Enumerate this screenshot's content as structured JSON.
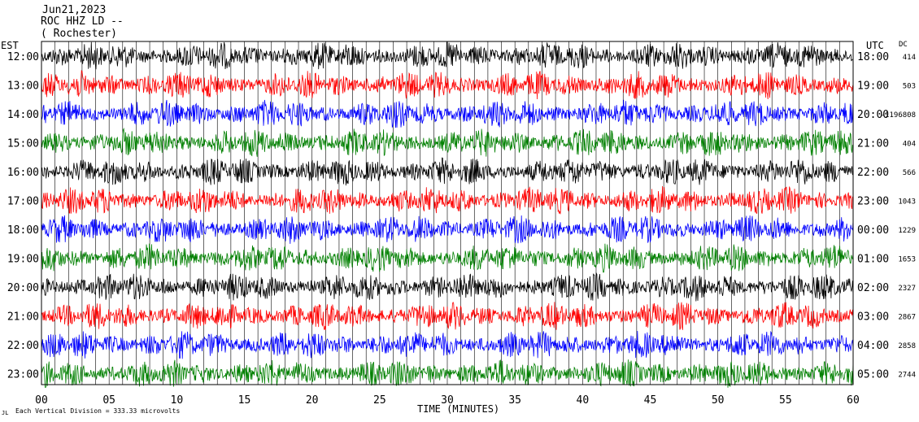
{
  "header": {
    "date": "Jun21,2023",
    "station": "ROC HHZ LD --",
    "location": "( Rochester)"
  },
  "chart_data": {
    "type": "line",
    "title": "Jun21,2023",
    "xlabel": "TIME (MINUTES)",
    "left_axis_label": "EST",
    "right_axis_label": "UTC",
    "dc_label": "DC",
    "x_ticks": [
      "00",
      "05",
      "10",
      "15",
      "20",
      "25",
      "30",
      "35",
      "40",
      "45",
      "50",
      "55",
      "60"
    ],
    "x_tick_values": [
      0,
      5,
      10,
      15,
      20,
      25,
      30,
      35,
      40,
      45,
      50,
      55,
      60
    ],
    "xlim": [
      0,
      60
    ],
    "grid": "vertical lines every minute",
    "trace_colors": [
      "#000000",
      "#ff0000",
      "#008000",
      "#0000ff"
    ],
    "rows": [
      {
        "est": "12:00",
        "utc": "18:00",
        "dc": "414",
        "color": "#000000"
      },
      {
        "est": "13:00",
        "utc": "19:00",
        "dc": "503",
        "color": "#ff0000"
      },
      {
        "est": "14:00",
        "utc": "20:00",
        "dc": "-1196808",
        "color": "#0000ff"
      },
      {
        "est": "15:00",
        "utc": "21:00",
        "dc": "404",
        "color": "#008000"
      },
      {
        "est": "16:00",
        "utc": "22:00",
        "dc": "566",
        "color": "#000000"
      },
      {
        "est": "17:00",
        "utc": "23:00",
        "dc": "1043",
        "color": "#ff0000"
      },
      {
        "est": "18:00",
        "utc": "00:00",
        "dc": "1229",
        "color": "#0000ff"
      },
      {
        "est": "19:00",
        "utc": "01:00",
        "dc": "1653",
        "color": "#008000"
      },
      {
        "est": "20:00",
        "utc": "02:00",
        "dc": "2327",
        "color": "#000000"
      },
      {
        "est": "21:00",
        "utc": "03:00",
        "dc": "2867",
        "color": "#ff0000"
      },
      {
        "est": "22:00",
        "utc": "04:00",
        "dc": "2858",
        "color": "#0000ff"
      },
      {
        "est": "23:00",
        "utc": "05:00",
        "dc": "2744",
        "color": "#008000"
      }
    ],
    "footnote": "Each Vertical Division = 333.33 microvolts"
  }
}
